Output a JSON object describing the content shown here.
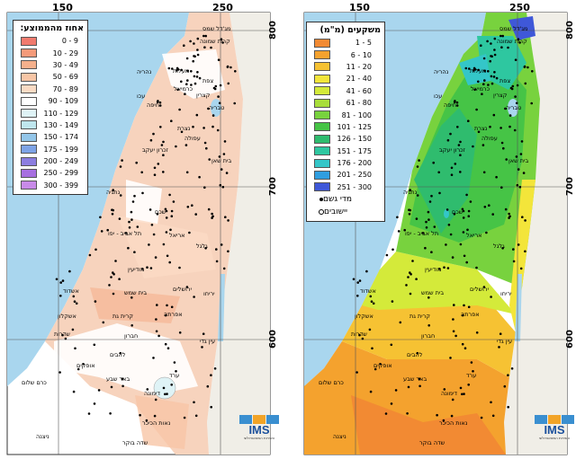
{
  "axes": {
    "top_ticks": [
      "150",
      "250"
    ],
    "right_ticks": [
      "800",
      "700",
      "600"
    ]
  },
  "left_map": {
    "legend_title": "אחוז מהממוצע:",
    "legend_items": [
      {
        "label": "0 - 9",
        "color": "#f07a6e"
      },
      {
        "label": "10 - 29",
        "color": "#f49a7a"
      },
      {
        "label": "30 - 49",
        "color": "#f5b08c"
      },
      {
        "label": "50 - 69",
        "color": "#f8c6a6"
      },
      {
        "label": "70 - 89",
        "color": "#fbdbc4"
      },
      {
        "label": "90 - 109",
        "color": "#ffffff"
      },
      {
        "label": "110 - 129",
        "color": "#dff3f6"
      },
      {
        "label": "130 - 149",
        "color": "#bfe6ee"
      },
      {
        "label": "150 - 174",
        "color": "#93c6e9"
      },
      {
        "label": "175 - 199",
        "color": "#7ea3e6"
      },
      {
        "label": "200 - 249",
        "color": "#8c7ee0"
      },
      {
        "label": "250 - 299",
        "color": "#a76fe0"
      },
      {
        "label": "300 - 399",
        "color": "#c88ae8"
      }
    ]
  },
  "right_map": {
    "legend_title": "משקעים (מ\"מ)",
    "legend_items": [
      {
        "label": "1 - 5",
        "color": "#f28a33"
      },
      {
        "label": "6 - 10",
        "color": "#f4a22e"
      },
      {
        "label": "11 - 20",
        "color": "#f6c233"
      },
      {
        "label": "21 - 40",
        "color": "#f3e53a"
      },
      {
        "label": "41 - 60",
        "color": "#d4ea3a"
      },
      {
        "label": "61 - 80",
        "color": "#a8de3a"
      },
      {
        "label": "81 - 100",
        "color": "#78d23e"
      },
      {
        "label": "101 - 125",
        "color": "#46c446"
      },
      {
        "label": "126 - 150",
        "color": "#2fbc6e"
      },
      {
        "label": "151 - 175",
        "color": "#2ec7a0"
      },
      {
        "label": "176 - 200",
        "color": "#34c6c8"
      },
      {
        "label": "201 - 250",
        "color": "#2f9ee0"
      },
      {
        "label": "251 - 300",
        "color": "#3f58d8"
      }
    ],
    "symbols": [
      {
        "label": "מדי גשם",
        "symbol": "dot"
      },
      {
        "label": "יישובים",
        "symbol": "ring"
      }
    ]
  },
  "places": [
    "מג'דל שמס",
    "קרית שמונה",
    "מעלות",
    "צפת",
    "נהריה",
    "כרמיאל",
    "עכו",
    "קצרין",
    "חיפה",
    "טבריה",
    "נצרת",
    "עפולה",
    "זכרון יעקב",
    "בית שאן",
    "נתניה",
    "שכם",
    "תל אביב - יפו",
    "אריאל",
    "גלגל",
    "מודיעין",
    "אשדוד",
    "ירושלים",
    "בית שמש",
    "יריחו",
    "אשקלון",
    "קרית גת",
    "אפרתה",
    "חברון",
    "שדרות",
    "עין גדי",
    "להבים",
    "אופקים",
    "באר שבע",
    "ערד",
    "כרם שלום",
    "דימונה",
    "נאות הכיכר",
    "שדה בוקר",
    "ניצנה"
  ],
  "logo": {
    "text": "IMS",
    "subtitle": "השירות המטאורולוגי"
  },
  "colors": {
    "sea": "#a9d6ee",
    "land_base": "#f7d3bd"
  }
}
